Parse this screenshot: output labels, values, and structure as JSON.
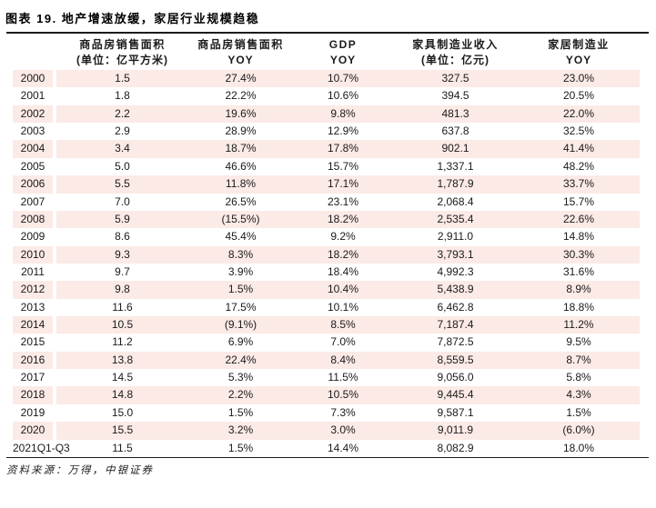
{
  "chart_data": {
    "type": "table",
    "title": "图表 19. 地产增速放缓，家居行业规模趋稳",
    "header": [
      {
        "line1": "",
        "line2": ""
      },
      {
        "line1": "商品房销售面积",
        "line2": "(单位：亿平方米)"
      },
      {
        "line1": "商品房销售面积",
        "line2": "YOY"
      },
      {
        "line1": "GDP",
        "line2": "YOY"
      },
      {
        "line1": "家具制造业收入",
        "line2": "(单位：亿元)"
      },
      {
        "line1": "家居制造业",
        "line2": "YOY"
      }
    ],
    "rows": [
      [
        "2000",
        "1.5",
        "27.4%",
        "10.7%",
        "327.5",
        "23.0%"
      ],
      [
        "2001",
        "1.8",
        "22.2%",
        "10.6%",
        "394.5",
        "20.5%"
      ],
      [
        "2002",
        "2.2",
        "19.6%",
        "9.8%",
        "481.3",
        "22.0%"
      ],
      [
        "2003",
        "2.9",
        "28.9%",
        "12.9%",
        "637.8",
        "32.5%"
      ],
      [
        "2004",
        "3.4",
        "18.7%",
        "17.8%",
        "902.1",
        "41.4%"
      ],
      [
        "2005",
        "5.0",
        "46.6%",
        "15.7%",
        "1,337.1",
        "48.2%"
      ],
      [
        "2006",
        "5.5",
        "11.8%",
        "17.1%",
        "1,787.9",
        "33.7%"
      ],
      [
        "2007",
        "7.0",
        "26.5%",
        "23.1%",
        "2,068.4",
        "15.7%"
      ],
      [
        "2008",
        "5.9",
        "(15.5%)",
        "18.2%",
        "2,535.4",
        "22.6%"
      ],
      [
        "2009",
        "8.6",
        "45.4%",
        "9.2%",
        "2,911.0",
        "14.8%"
      ],
      [
        "2010",
        "9.3",
        "8.3%",
        "18.2%",
        "3,793.1",
        "30.3%"
      ],
      [
        "2011",
        "9.7",
        "3.9%",
        "18.4%",
        "4,992.3",
        "31.6%"
      ],
      [
        "2012",
        "9.8",
        "1.5%",
        "10.4%",
        "5,438.9",
        "8.9%"
      ],
      [
        "2013",
        "11.6",
        "17.5%",
        "10.1%",
        "6,462.8",
        "18.8%"
      ],
      [
        "2014",
        "10.5",
        "(9.1%)",
        "8.5%",
        "7,187.4",
        "11.2%"
      ],
      [
        "2015",
        "11.2",
        "6.9%",
        "7.0%",
        "7,872.5",
        "9.5%"
      ],
      [
        "2016",
        "13.8",
        "22.4%",
        "8.4%",
        "8,559.5",
        "8.7%"
      ],
      [
        "2017",
        "14.5",
        "5.3%",
        "11.5%",
        "9,056.0",
        "5.8%"
      ],
      [
        "2018",
        "14.8",
        "2.2%",
        "10.5%",
        "9,445.4",
        "4.3%"
      ],
      [
        "2019",
        "15.0",
        "1.5%",
        "7.3%",
        "9,587.1",
        "1.5%"
      ],
      [
        "2020",
        "15.5",
        "3.2%",
        "3.0%",
        "9,011.9",
        "(6.0%)"
      ],
      [
        "2021Q1-Q3",
        "11.5",
        "1.5%",
        "14.4%",
        "8,082.9",
        "18.0%"
      ]
    ],
    "source": "资料来源：万得，中银证券",
    "layout": {
      "stripe_color": "#fbeae6",
      "rule_color": "#1c1c1c",
      "stripe_start": "first_row"
    }
  }
}
